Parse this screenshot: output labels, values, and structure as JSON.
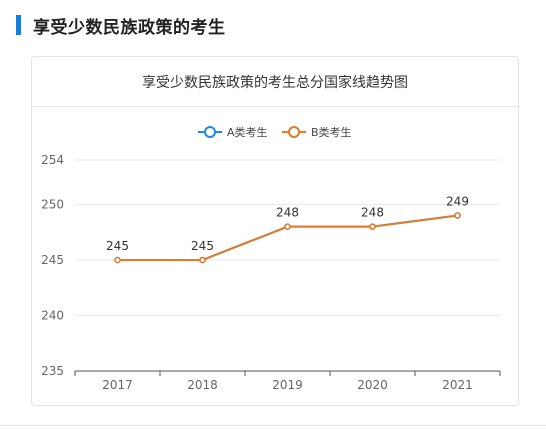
{
  "section": {
    "title": "享受少数民族政策的考生"
  },
  "card": {
    "title": "享受少数民族政策的考生总分国家线趋势图"
  },
  "colors": {
    "accent": "#1a7fd4",
    "series_a": "#1e88e5",
    "series_b": "#e07c2c"
  },
  "chart_data": {
    "type": "line",
    "title": "享受少数民族政策的考生总分国家线趋势图",
    "categories": [
      "2017",
      "2018",
      "2019",
      "2020",
      "2021"
    ],
    "ylim": [
      235,
      254
    ],
    "yticks": [
      "254",
      "250",
      "245",
      "240",
      "235"
    ],
    "ytick_values": [
      254,
      250,
      245,
      240,
      235
    ],
    "grid": true,
    "legend": "top",
    "series": [
      {
        "name": "A类考生",
        "color": "#1e88e5",
        "values": [
          245,
          245,
          248,
          248,
          249
        ],
        "show_labels": false
      },
      {
        "name": "B类考生",
        "color": "#e07c2c",
        "values": [
          245,
          245,
          248,
          248,
          249
        ],
        "show_labels": true
      }
    ]
  }
}
